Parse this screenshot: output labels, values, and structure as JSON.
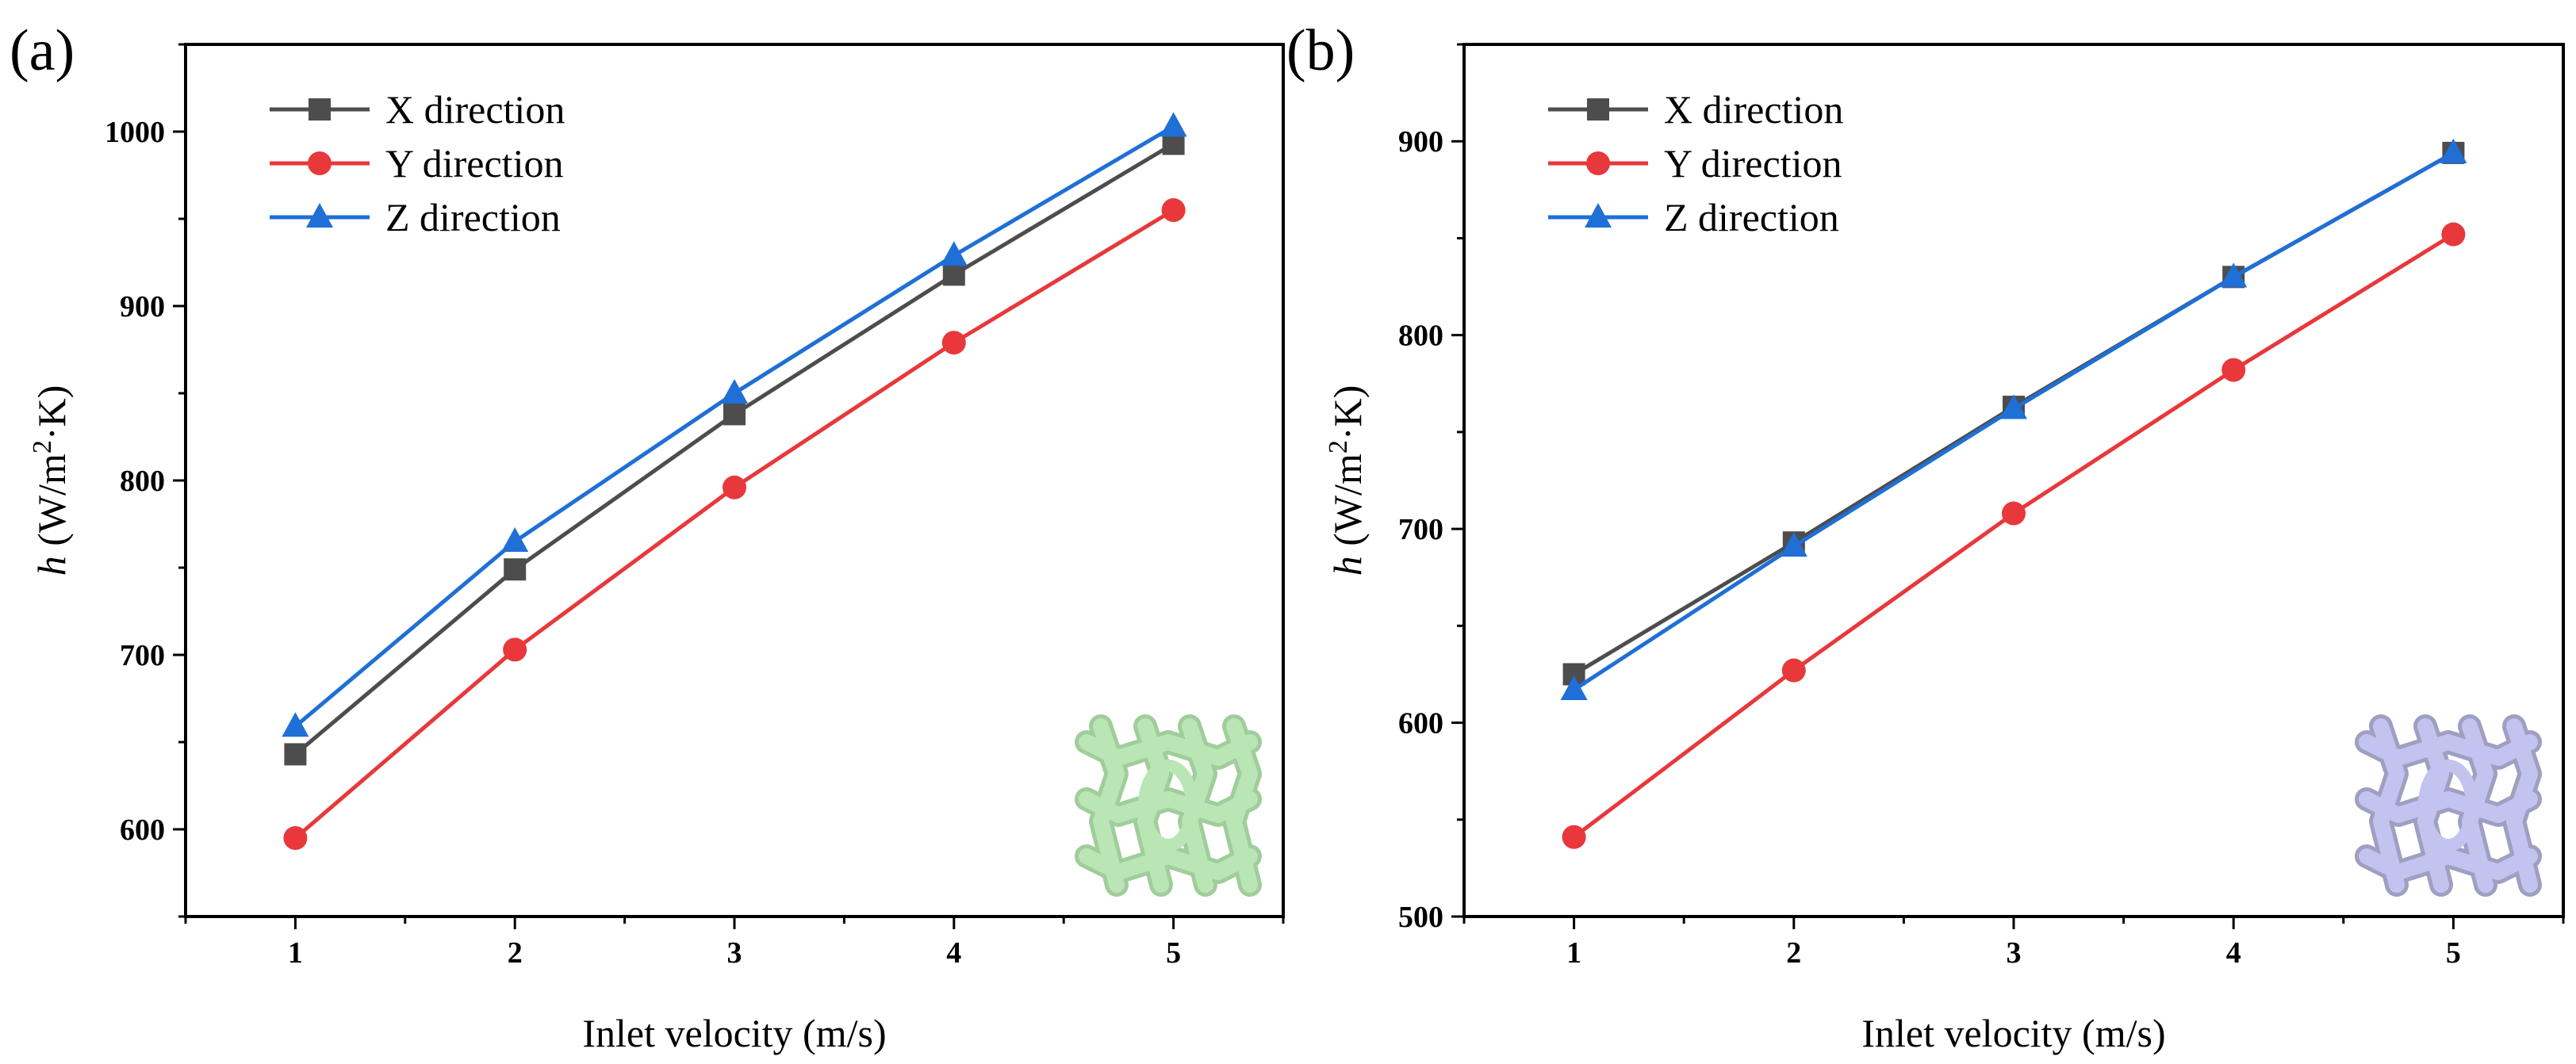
{
  "chart_data": [
    {
      "panel": "(a)",
      "type": "line",
      "xlabel": "Inlet velocity (m/s)",
      "ylabel_italic": "h",
      "ylabel_unit_prefix": " (W/m",
      "ylabel_unit_sup": "2",
      "ylabel_unit_suffix": "·K)",
      "xlim": [
        0.5,
        5.5
      ],
      "ylim": [
        550,
        1050
      ],
      "xticks": [
        1,
        2,
        3,
        4,
        5
      ],
      "yticks": [
        600,
        700,
        800,
        900,
        1000
      ],
      "x": [
        1,
        2,
        3,
        4,
        5
      ],
      "legend_position": "top-left",
      "inset": {
        "name": "green-lattice-structure",
        "color": "#b9e6b4"
      },
      "series": [
        {
          "name": "X direction",
          "marker": "square",
          "color": "#4d4d4d",
          "values": [
            643,
            749,
            838,
            918,
            993
          ]
        },
        {
          "name": "Y direction",
          "marker": "circle",
          "color": "#e8383b",
          "values": [
            595,
            703,
            796,
            879,
            955
          ]
        },
        {
          "name": "Z direction",
          "marker": "triangle",
          "color": "#1f6fd6",
          "values": [
            659,
            765,
            850,
            929,
            1003
          ]
        }
      ]
    },
    {
      "panel": "(b)",
      "type": "line",
      "xlabel": "Inlet velocity (m/s)",
      "ylabel_italic": "h",
      "ylabel_unit_prefix": " (W/m",
      "ylabel_unit_sup": "2",
      "ylabel_unit_suffix": "·K)",
      "xlim": [
        0.5,
        5.5
      ],
      "ylim": [
        500,
        950
      ],
      "xticks": [
        1,
        2,
        3,
        4,
        5
      ],
      "yticks": [
        500,
        600,
        700,
        800,
        900
      ],
      "x": [
        1,
        2,
        3,
        4,
        5
      ],
      "legend_position": "top-left",
      "inset": {
        "name": "lavender-lattice-structure",
        "color": "#c3c3f0"
      },
      "series": [
        {
          "name": "X direction",
          "marker": "square",
          "color": "#4d4d4d",
          "values": [
            625,
            693,
            763,
            830,
            894
          ]
        },
        {
          "name": "Y direction",
          "marker": "circle",
          "color": "#e8383b",
          "values": [
            541,
            627,
            708,
            782,
            852
          ]
        },
        {
          "name": "Z direction",
          "marker": "triangle",
          "color": "#1f6fd6",
          "values": [
            617,
            691,
            762,
            830,
            894
          ]
        }
      ]
    }
  ]
}
